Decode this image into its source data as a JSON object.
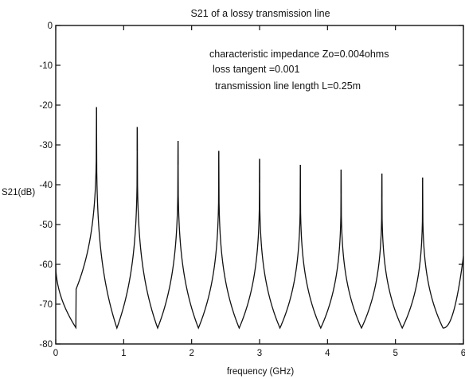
{
  "chart_data": {
    "type": "line",
    "title": "S21 of a lossy transmission line",
    "xlabel": "frequency (GHz)",
    "ylabel": "S21(dB)",
    "xlim": [
      0,
      6
    ],
    "ylim": [
      -80,
      0
    ],
    "xticks": [
      0,
      1,
      2,
      3,
      4,
      5,
      6
    ],
    "yticks": [
      0,
      -10,
      -20,
      -30,
      -40,
      -50,
      -60,
      -70,
      -80
    ],
    "grid": false,
    "annotations": [
      "characteristic impedance Zo=0.004ohms",
      "loss tangent =0.001",
      "transmission line length L=0.25m"
    ],
    "series": [
      {
        "resonance_peaks_ghz": [
          0.6,
          1.2,
          1.8,
          2.4,
          3.0,
          3.6,
          4.2,
          4.8,
          5.4
        ],
        "peak_values_db": [
          -20.5,
          -25.5,
          -29.0,
          -31.5,
          -33.5,
          -35.0,
          -36.2,
          -37.2,
          -38.2
        ],
        "trough_values_db": [
          -76,
          -76,
          -76,
          -76,
          -76,
          -76,
          -76,
          -76,
          -76,
          -76
        ],
        "start_value_db": -60,
        "end_value_db": -58
      }
    ]
  }
}
